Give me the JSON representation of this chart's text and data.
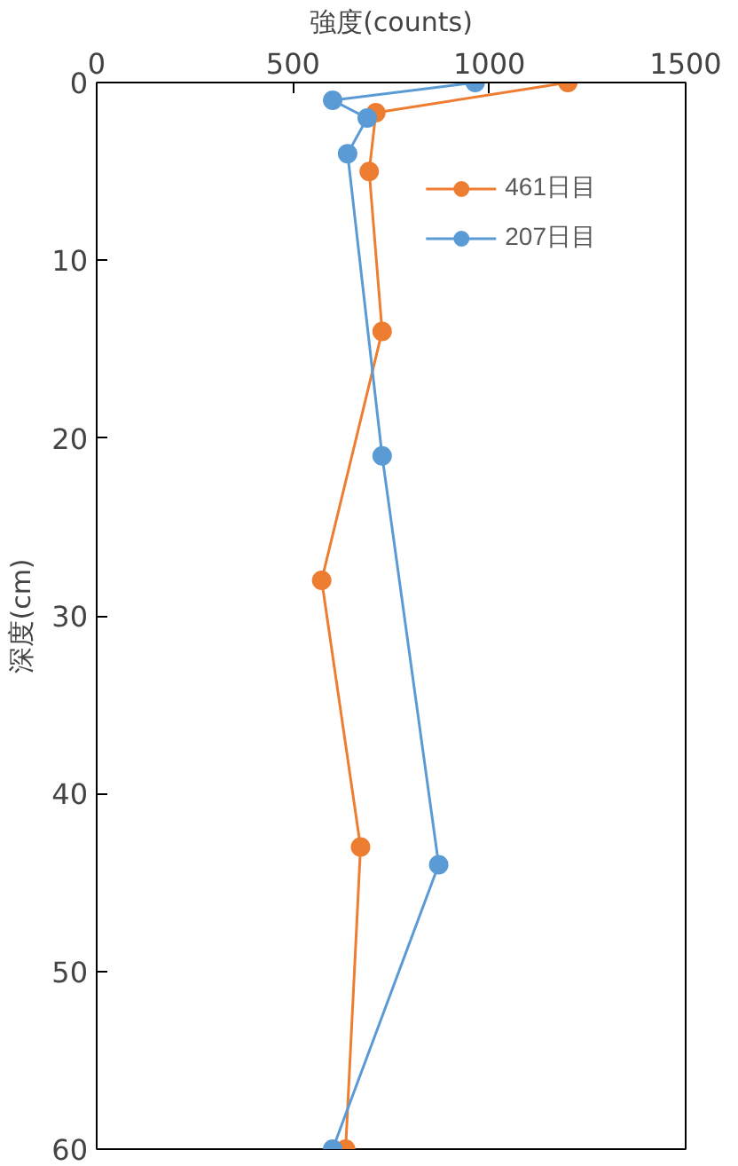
{
  "chart_data": {
    "type": "line",
    "xlabel": "強度(counts)",
    "ylabel": "深度(cm)",
    "xlim": [
      0,
      1500
    ],
    "xticks": [
      0,
      500,
      1000,
      1500
    ],
    "ylim": [
      60,
      0
    ],
    "yticks": [
      0,
      10,
      20,
      30,
      40,
      50,
      60
    ],
    "marker": "circle",
    "grid": false,
    "legend": "top right",
    "series": [
      {
        "name": "461日目",
        "color": "#ed7d31",
        "x": [
          1200,
          711,
          694,
          727,
          573,
          672,
          634
        ],
        "values": [
          0,
          1.7,
          5,
          14,
          28,
          43,
          60
        ]
      },
      {
        "name": "207日目",
        "color": "#5b9bd5",
        "x": [
          964,
          601,
          689,
          639,
          727,
          871,
          601
        ],
        "values": [
          0,
          1,
          2,
          4,
          21,
          44,
          60
        ]
      }
    ]
  }
}
